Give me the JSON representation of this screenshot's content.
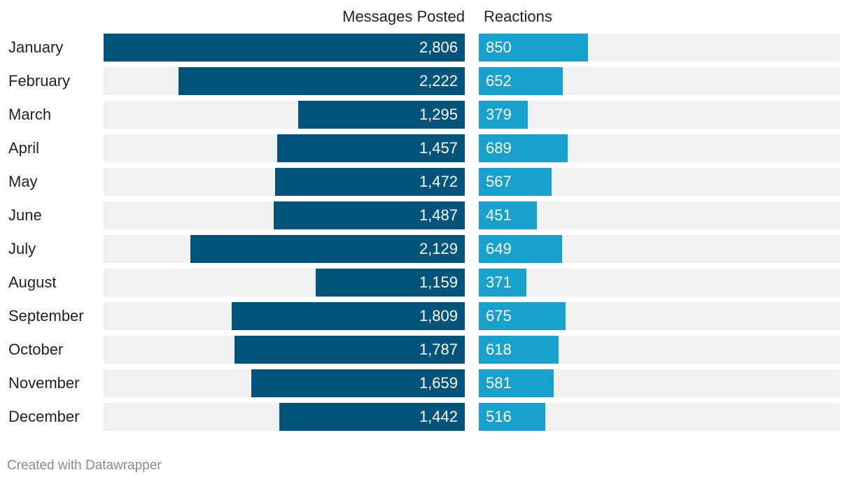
{
  "colors": {
    "messages": "#03547a",
    "reactions": "#18a1cd",
    "track": "#f1f1f1"
  },
  "footer": "Created with Datawrapper",
  "chart_data": {
    "type": "bar",
    "orientation": "horizontal",
    "categories": [
      "January",
      "February",
      "March",
      "April",
      "May",
      "June",
      "July",
      "August",
      "September",
      "October",
      "November",
      "December"
    ],
    "series": [
      {
        "name": "Messages Posted",
        "values": [
          2806,
          2222,
          1295,
          1457,
          1472,
          1487,
          2129,
          1159,
          1809,
          1787,
          1659,
          1442
        ],
        "labels": [
          "2,806",
          "2,222",
          "1,295",
          "1,457",
          "1,472",
          "1,487",
          "2,129",
          "1,159",
          "1,809",
          "1,787",
          "1,659",
          "1,442"
        ],
        "direction": "right-to-left",
        "xlim": [
          0,
          2806
        ]
      },
      {
        "name": "Reactions",
        "values": [
          850,
          652,
          379,
          689,
          567,
          451,
          649,
          371,
          675,
          618,
          581,
          516
        ],
        "labels": [
          "850",
          "652",
          "379",
          "689",
          "567",
          "451",
          "649",
          "371",
          "675",
          "618",
          "581",
          "516"
        ],
        "direction": "left-to-right",
        "xlim": [
          0,
          2806
        ]
      }
    ]
  }
}
